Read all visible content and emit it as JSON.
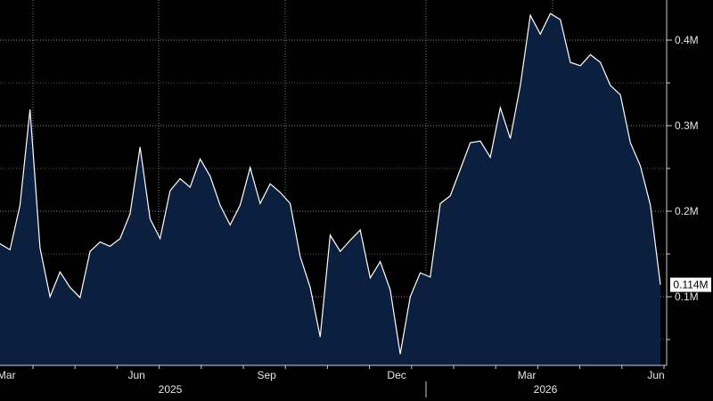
{
  "chart_data": {
    "type": "area",
    "categories": [
      null,
      "Mar",
      null,
      null,
      null,
      null,
      null,
      null,
      null,
      null,
      null,
      null,
      null,
      null,
      "Jun",
      null,
      null,
      null,
      null,
      null,
      null,
      null,
      null,
      null,
      null,
      null,
      null,
      "Sep",
      null,
      null,
      null,
      null,
      null,
      null,
      null,
      null,
      null,
      null,
      null,
      null,
      "Dec",
      null,
      null,
      null,
      null,
      null,
      null,
      null,
      null,
      null,
      null,
      null,
      null,
      "Mar",
      null,
      null,
      null,
      null,
      null,
      null,
      null,
      null,
      null,
      null,
      null,
      null,
      "Jun"
    ],
    "years": [
      "2025",
      "2026"
    ],
    "series": [
      {
        "color": "#ffffff",
        "fill": "#0b1f3e",
        "values": [
          0.162,
          0.155,
          0.207,
          0.319,
          0.157,
          0.1,
          0.129,
          0.111,
          0.099,
          0.153,
          0.164,
          0.159,
          0.168,
          0.197,
          0.275,
          0.191,
          0.168,
          0.224,
          0.238,
          0.228,
          0.261,
          0.241,
          0.207,
          0.184,
          0.207,
          0.251,
          0.209,
          0.232,
          0.222,
          0.209,
          0.147,
          0.111,
          0.053,
          0.172,
          0.153,
          0.166,
          0.178,
          0.122,
          0.141,
          0.108,
          0.033,
          0.1,
          0.128,
          0.123,
          0.209,
          0.218,
          0.249,
          0.28,
          0.282,
          0.263,
          0.321,
          0.285,
          0.347,
          0.429,
          0.407,
          0.431,
          0.424,
          0.374,
          0.37,
          0.383,
          0.374,
          0.347,
          0.336,
          0.28,
          0.253,
          0.207,
          0.114
        ],
        "last_label": "0.114M"
      }
    ],
    "ylim": [
      0.0198,
      0.4469
    ],
    "yticks": [
      {
        "value": 0.1,
        "label": "0.1M"
      },
      {
        "value": 0.2,
        "label": "0.2M"
      },
      {
        "value": 0.3,
        "label": "0.3M"
      },
      {
        "value": 0.4,
        "label": "0.4M"
      }
    ],
    "y_minor_ticks": [
      0.05,
      0.15,
      0.25,
      0.35
    ],
    "grid": true
  }
}
